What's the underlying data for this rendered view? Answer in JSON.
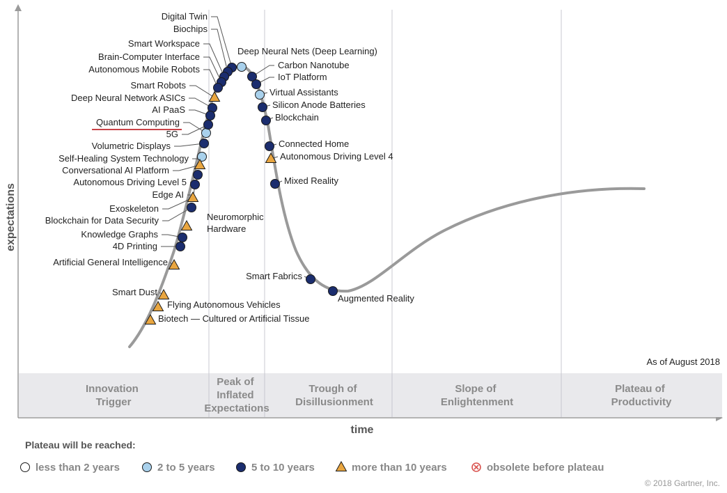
{
  "chart_data": {
    "type": "scatter",
    "title": "",
    "xlabel": "time",
    "ylabel": "expectations",
    "as_of": "As of August 2018",
    "copyright": "© 2018 Gartner, Inc.",
    "phases": [
      "Innovation Trigger",
      "Peak of Inflated Expectations",
      "Trough of Disillusionment",
      "Slope of Enlightenment",
      "Plateau of Productivity"
    ],
    "legend_title": "Plateau will be reached:",
    "legend": [
      {
        "key": "lt2",
        "label": "less than 2 years",
        "marker": "circle",
        "color": "#ffffff"
      },
      {
        "key": "2to5",
        "label": "2 to 5 years",
        "marker": "circle",
        "color": "#a9d1ec"
      },
      {
        "key": "5to10",
        "label": "5 to 10 years",
        "marker": "circle",
        "color": "#1b2d6e"
      },
      {
        "key": "gt10",
        "label": "more than 10 years",
        "marker": "triangle",
        "color": "#e9a640"
      },
      {
        "key": "obsolete",
        "label": "obsolete before plateau",
        "marker": "x-circle",
        "color": "#d9534f"
      }
    ],
    "points": [
      {
        "label": "Digital Twin",
        "phase": "Peak of Inflated Expectations",
        "years": "5to10"
      },
      {
        "label": "Biochips",
        "phase": "Peak of Inflated Expectations",
        "years": "5to10"
      },
      {
        "label": "Smart Workspace",
        "phase": "Peak of Inflated Expectations",
        "years": "5to10"
      },
      {
        "label": "Brain-Computer Interface",
        "phase": "Peak of Inflated Expectations",
        "years": "5to10"
      },
      {
        "label": "Autonomous Mobile Robots",
        "phase": "Innovation Trigger",
        "years": "5to10"
      },
      {
        "label": "Smart Robots",
        "phase": "Innovation Trigger",
        "years": "gt10"
      },
      {
        "label": "Deep Neural Network ASICs",
        "phase": "Innovation Trigger",
        "years": "5to10"
      },
      {
        "label": "AI PaaS",
        "phase": "Innovation Trigger",
        "years": "5to10"
      },
      {
        "label": "Quantum Computing",
        "phase": "Innovation Trigger",
        "years": "2to5"
      },
      {
        "label": "5G",
        "phase": "Innovation Trigger",
        "years": "5to10"
      },
      {
        "label": "Volumetric Displays",
        "phase": "Innovation Trigger",
        "years": "5to10"
      },
      {
        "label": "Self-Healing System Technology",
        "phase": "Innovation Trigger",
        "years": "2to5"
      },
      {
        "label": "Conversational AI Platform",
        "phase": "Innovation Trigger",
        "years": "gt10"
      },
      {
        "label": "Autonomous Driving Level 5",
        "phase": "Innovation Trigger",
        "years": "5to10"
      },
      {
        "label": "Edge AI",
        "phase": "Innovation Trigger",
        "years": "5to10"
      },
      {
        "label": "Exoskeleton",
        "phase": "Innovation Trigger",
        "years": "gt10"
      },
      {
        "label": "Blockchain for Data Security",
        "phase": "Innovation Trigger",
        "years": "5to10"
      },
      {
        "label": "Neuromorphic Hardware",
        "phase": "Innovation Trigger",
        "years": "gt10"
      },
      {
        "label": "Knowledge Graphs",
        "phase": "Innovation Trigger",
        "years": "5to10"
      },
      {
        "label": "4D Printing",
        "phase": "Innovation Trigger",
        "years": "5to10"
      },
      {
        "label": "Artificial General Intelligence",
        "phase": "Innovation Trigger",
        "years": "gt10"
      },
      {
        "label": "Smart Dust",
        "phase": "Innovation Trigger",
        "years": "gt10"
      },
      {
        "label": "Flying Autonomous Vehicles",
        "phase": "Innovation Trigger",
        "years": "gt10"
      },
      {
        "label": "Biotech — Cultured or Artificial Tissue",
        "phase": "Innovation Trigger",
        "years": "gt10"
      },
      {
        "label": "Deep Neural Nets (Deep Learning)",
        "phase": "Peak of Inflated Expectations",
        "years": "2to5"
      },
      {
        "label": "Carbon Nanotube",
        "phase": "Peak of Inflated Expectations",
        "years": "5to10"
      },
      {
        "label": "IoT Platform",
        "phase": "Peak of Inflated Expectations",
        "years": "5to10"
      },
      {
        "label": "Virtual Assistants",
        "phase": "Peak of Inflated Expectations",
        "years": "2to5"
      },
      {
        "label": "Silicon Anode Batteries",
        "phase": "Peak of Inflated Expectations",
        "years": "5to10"
      },
      {
        "label": "Blockchain",
        "phase": "Trough of Disillusionment",
        "years": "5to10"
      },
      {
        "label": "Connected Home",
        "phase": "Trough of Disillusionment",
        "years": "5to10"
      },
      {
        "label": "Autonomous Driving Level 4",
        "phase": "Trough of Disillusionment",
        "years": "gt10"
      },
      {
        "label": "Mixed Reality",
        "phase": "Trough of Disillusionment",
        "years": "5to10"
      },
      {
        "label": "Smart Fabrics",
        "phase": "Trough of Disillusionment",
        "years": "5to10"
      },
      {
        "label": "Augmented Reality",
        "phase": "Trough of Disillusionment",
        "years": "5to10"
      }
    ],
    "colors": {
      "curve": "#9a9a9a",
      "band": "#e9e9ec",
      "divider": "#c8c8d0",
      "marker_stroke": "#1a1a1a",
      "underline": "#c0272d"
    }
  }
}
